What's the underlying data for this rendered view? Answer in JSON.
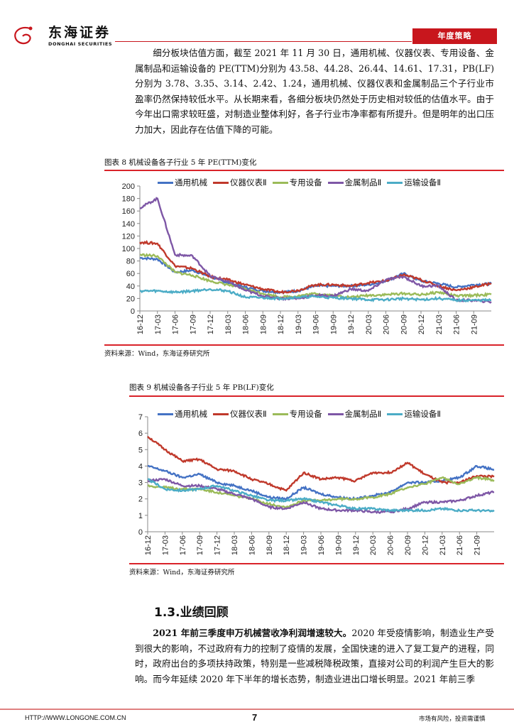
{
  "header": {
    "logo_cn": "东海证券",
    "logo_en": "DONGHAI SECURITIES",
    "report_type": "年度策略",
    "brand_color": "#c8161d"
  },
  "paragraph1": "细分板块估值方面，截至 2021 年 11 月 30 日，通用机械、仪器仪表、专用设备、金属制品和运输设备的 PE(TTM)分别为 43.58、44.28、26.44、14.61、17.31，PB(LF)分别为 3.78、3.35、3.14、2.42、1.24，通用机械、仪器仪表和金属制品三个子行业市盈率仍然保持较低水平。从长期来看，各细分板块仍然处于历史相对较低的估值水平。由于今年出口需求较旺盛，对制造业整体利好，各子行业市净率都有所提升。但是明年的出口压力加大，因此存在估值下降的可能。",
  "figure8": {
    "title": "图表 8   机械设备各子行业 5 年 PE(TTM)变化",
    "source": "资料来源：Wind，东海证券研究所"
  },
  "figure9": {
    "title": "图表 9   机械设备各子行业 5 年 PB(LF)变化",
    "source": "资料来源：Wind，东海证券研究所"
  },
  "legend": [
    {
      "name": "通用机械",
      "color": "#4472c4"
    },
    {
      "name": "仪器仪表Ⅱ",
      "color": "#c0392b"
    },
    {
      "name": "专用设备",
      "color": "#9bbb59"
    },
    {
      "name": "金属制品Ⅱ",
      "color": "#7e57a6"
    },
    {
      "name": "运输设备Ⅱ",
      "color": "#4bacc6"
    }
  ],
  "chart_data": [
    {
      "type": "line",
      "title": "机械设备各子行业 5 年 PE(TTM)变化",
      "x": [
        "16-12",
        "17-03",
        "17-06",
        "17-09",
        "17-12",
        "18-03",
        "18-06",
        "18-09",
        "18-12",
        "19-03",
        "19-06",
        "19-09",
        "19-12",
        "20-03",
        "20-06",
        "20-09",
        "20-12",
        "21-03",
        "21-06",
        "21-09",
        "21-11"
      ],
      "xticks": [
        "16-12",
        "17-03",
        "17-06",
        "17-09",
        "17-12",
        "18-03",
        "18-06",
        "18-09",
        "18-12",
        "19-03",
        "19-06",
        "19-09",
        "19-12",
        "20-03",
        "20-06",
        "20-09",
        "20-12",
        "21-03",
        "21-06",
        "21-09"
      ],
      "ylim": [
        0,
        200
      ],
      "yticks": [
        0,
        20,
        40,
        60,
        80,
        100,
        120,
        140,
        160,
        180,
        200
      ],
      "legend_position": "top",
      "grid": false,
      "series": [
        {
          "name": "通用机械",
          "values": [
            85,
            83,
            62,
            65,
            55,
            45,
            38,
            32,
            30,
            32,
            40,
            40,
            40,
            42,
            48,
            60,
            48,
            44,
            38,
            42,
            43.58
          ]
        },
        {
          "name": "仪器仪表Ⅱ",
          "values": [
            110,
            108,
            72,
            68,
            55,
            50,
            42,
            35,
            30,
            33,
            42,
            42,
            40,
            45,
            48,
            58,
            50,
            40,
            33,
            38,
            44.28
          ]
        },
        {
          "name": "专用设备",
          "values": [
            90,
            88,
            62,
            57,
            48,
            42,
            35,
            28,
            22,
            24,
            28,
            25,
            22,
            25,
            26,
            28,
            26,
            30,
            24,
            25,
            26.44
          ]
        },
        {
          "name": "金属制品Ⅱ",
          "values": [
            165,
            180,
            90,
            88,
            56,
            47,
            33,
            24,
            20,
            20,
            25,
            24,
            35,
            32,
            50,
            55,
            40,
            40,
            17,
            17,
            14.61
          ]
        },
        {
          "name": "运输设备Ⅱ",
          "values": [
            32,
            32,
            30,
            32,
            35,
            32,
            22,
            21,
            20,
            22,
            23,
            21,
            20,
            18,
            18,
            20,
            18,
            20,
            17,
            17,
            17.31
          ]
        }
      ]
    },
    {
      "type": "line",
      "title": "机械设备各子行业 5 年 PB(LF)变化",
      "x": [
        "16-12",
        "17-03",
        "17-06",
        "17-09",
        "17-12",
        "18-03",
        "18-06",
        "18-09",
        "18-12",
        "19-03",
        "19-06",
        "19-09",
        "19-12",
        "20-03",
        "20-06",
        "20-09",
        "20-12",
        "21-03",
        "21-06",
        "21-09",
        "21-11"
      ],
      "xticks": [
        "16-12",
        "17-03",
        "17-06",
        "17-09",
        "17-12",
        "18-03",
        "18-06",
        "18-09",
        "18-12",
        "19-03",
        "19-06",
        "19-09",
        "19-12",
        "20-03",
        "20-06",
        "20-09",
        "20-12",
        "21-03",
        "21-06",
        "21-09"
      ],
      "ylim": [
        0,
        7
      ],
      "yticks": [
        0,
        1,
        2,
        3,
        4,
        5,
        6,
        7
      ],
      "legend_position": "top",
      "grid": false,
      "series": [
        {
          "name": "通用机械",
          "values": [
            4.0,
            3.7,
            3.3,
            3.5,
            3.0,
            2.8,
            2.5,
            2.1,
            2.0,
            2.7,
            2.3,
            2.1,
            2.0,
            2.2,
            2.4,
            3.0,
            3.0,
            3.1,
            3.3,
            4.0,
            3.78
          ]
        },
        {
          "name": "仪器仪表Ⅱ",
          "values": [
            5.8,
            5.0,
            4.3,
            4.4,
            3.8,
            3.7,
            3.2,
            2.9,
            2.5,
            3.6,
            3.2,
            3.3,
            3.1,
            3.6,
            3.6,
            4.2,
            3.5,
            3.0,
            3.0,
            3.4,
            3.35
          ]
        },
        {
          "name": "专用设备",
          "values": [
            2.8,
            2.7,
            2.6,
            2.6,
            2.4,
            2.2,
            2.0,
            1.7,
            1.5,
            1.9,
            1.9,
            2.0,
            2.0,
            2.1,
            2.3,
            2.7,
            2.9,
            3.3,
            2.9,
            3.3,
            3.14
          ]
        },
        {
          "name": "金属制品Ⅱ",
          "values": [
            3.1,
            3.2,
            2.8,
            2.8,
            2.6,
            2.3,
            2.0,
            1.5,
            1.4,
            1.8,
            1.4,
            1.3,
            1.3,
            1.2,
            1.2,
            1.4,
            1.8,
            1.8,
            1.9,
            2.2,
            2.42
          ]
        },
        {
          "name": "运输设备Ⅱ",
          "values": [
            3.2,
            2.6,
            2.5,
            2.6,
            2.8,
            2.5,
            2.2,
            1.9,
            1.9,
            2.0,
            1.8,
            1.6,
            1.4,
            1.4,
            1.3,
            1.3,
            1.3,
            1.4,
            1.3,
            1.3,
            1.24
          ]
        }
      ]
    }
  ],
  "section": {
    "heading": "1.3.业绩回顾",
    "lead_bold": "2021 年前三季度申万机械营收净利润增速较大。",
    "body": "2020 年受疫情影响，制造业生产受到很大的影响，不过政府有力的控制了疫情的发展，全国快速的进入了复工复产的进程，同时，政府出台的多项扶持政策，特别是一些减税降税政策，直接对公司的利润产生巨大的影响。而今年延续 2020 年下半年的增长态势，制造业进出口增长明显。2021 年前三季"
  },
  "footer": {
    "url": "HTTP://WWW.LONGONE.COM.CN",
    "page": "7",
    "disclaimer": "市场有风险，投资需谨慎"
  }
}
